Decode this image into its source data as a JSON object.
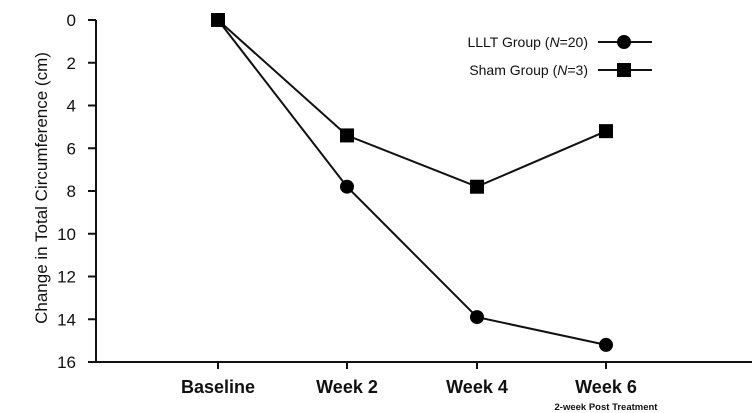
{
  "chart_data": {
    "type": "line",
    "ylabel": "Change in Total Circumference (cm)",
    "xlabel": "",
    "categories": [
      "Baseline",
      "Week 2",
      "Week 4",
      "Week 6"
    ],
    "category_sublabels": [
      "",
      "",
      "",
      "2-week Post Treatment"
    ],
    "yticks": [
      "0",
      "2",
      "4",
      "6",
      "8",
      "10",
      "12",
      "14",
      "16"
    ],
    "ylim": [
      0,
      16
    ],
    "y_inverted": true,
    "legend_position": "top-right",
    "series": [
      {
        "name_prefix": "LLLT Group (",
        "name_italic": "N",
        "name_suffix": "=20)",
        "marker": "circle",
        "values": [
          0,
          7.8,
          13.9,
          15.2
        ]
      },
      {
        "name_prefix": "Sham Group  (",
        "name_italic": "N",
        "name_suffix": "=3)",
        "marker": "square",
        "values": [
          0,
          5.4,
          7.8,
          5.2
        ]
      }
    ]
  }
}
